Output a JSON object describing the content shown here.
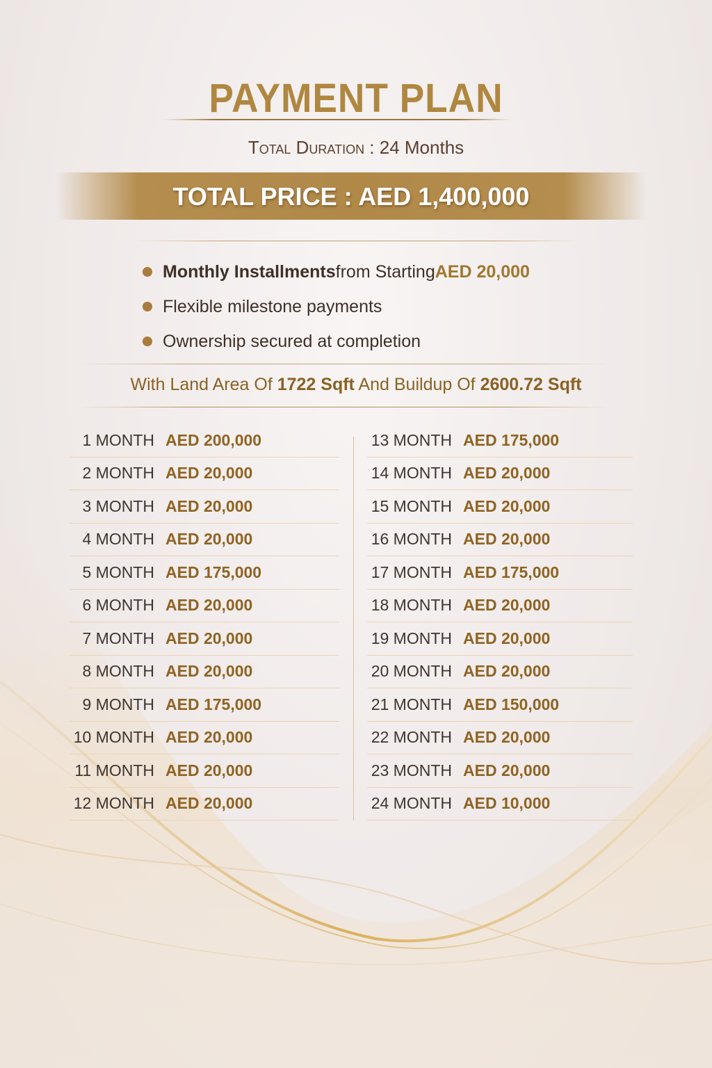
{
  "header": {
    "title": "PAYMENT PLAN",
    "duration_label": "Total Duration",
    "duration_sep": " : ",
    "duration_value": "24 Months",
    "total_price": "TOTAL PRICE : AED 1,400,000"
  },
  "bullets": [
    {
      "bold": "Monthly Installments",
      "text": " from Starting ",
      "highlight": "AED 20,000"
    },
    {
      "bold": "",
      "text": "Flexible milestone payments",
      "highlight": ""
    },
    {
      "bold": "",
      "text": "Ownership secured at completion",
      "highlight": ""
    }
  ],
  "land": {
    "prefix": "With Land Area Of ",
    "land_area": "1722 Sqft",
    "mid": " And Buildup Of ",
    "buildup": "2600.72 Sqft"
  },
  "schedule_left": [
    {
      "month": "1 MONTH",
      "amount": "AED 200,000"
    },
    {
      "month": "2 MONTH",
      "amount": "AED 20,000"
    },
    {
      "month": "3 MONTH",
      "amount": "AED 20,000"
    },
    {
      "month": "4 MONTH",
      "amount": "AED 20,000"
    },
    {
      "month": "5 MONTH",
      "amount": "AED 175,000"
    },
    {
      "month": "6 MONTH",
      "amount": "AED 20,000"
    },
    {
      "month": "7 MONTH",
      "amount": "AED 20,000"
    },
    {
      "month": "8 MONTH",
      "amount": "AED 20,000"
    },
    {
      "month": "9 MONTH",
      "amount": "AED 175,000"
    },
    {
      "month": "10 MONTH",
      "amount": "AED 20,000"
    },
    {
      "month": "11 MONTH",
      "amount": "AED 20,000"
    },
    {
      "month": "12 MONTH",
      "amount": "AED 20,000"
    }
  ],
  "schedule_right": [
    {
      "month": "13 MONTH",
      "amount": "AED 175,000"
    },
    {
      "month": "14 MONTH",
      "amount": "AED 20,000"
    },
    {
      "month": "15 MONTH",
      "amount": "AED 20,000"
    },
    {
      "month": "16 MONTH",
      "amount": "AED 20,000"
    },
    {
      "month": "17 MONTH",
      "amount": "AED 175,000"
    },
    {
      "month": "18 MONTH",
      "amount": "AED 20,000"
    },
    {
      "month": "19 MONTH",
      "amount": "AED 20,000"
    },
    {
      "month": "20 MONTH",
      "amount": "AED 20,000"
    },
    {
      "month": "21 MONTH",
      "amount": "AED 150,000"
    },
    {
      "month": "22 MONTH",
      "amount": "AED 20,000"
    },
    {
      "month": "23 MONTH",
      "amount": "AED 20,000"
    },
    {
      "month": "24 MONTH",
      "amount": "AED 10,000"
    }
  ],
  "colors": {
    "gold": "#b08740",
    "amount": "#8f6322",
    "text": "#3d3530"
  }
}
